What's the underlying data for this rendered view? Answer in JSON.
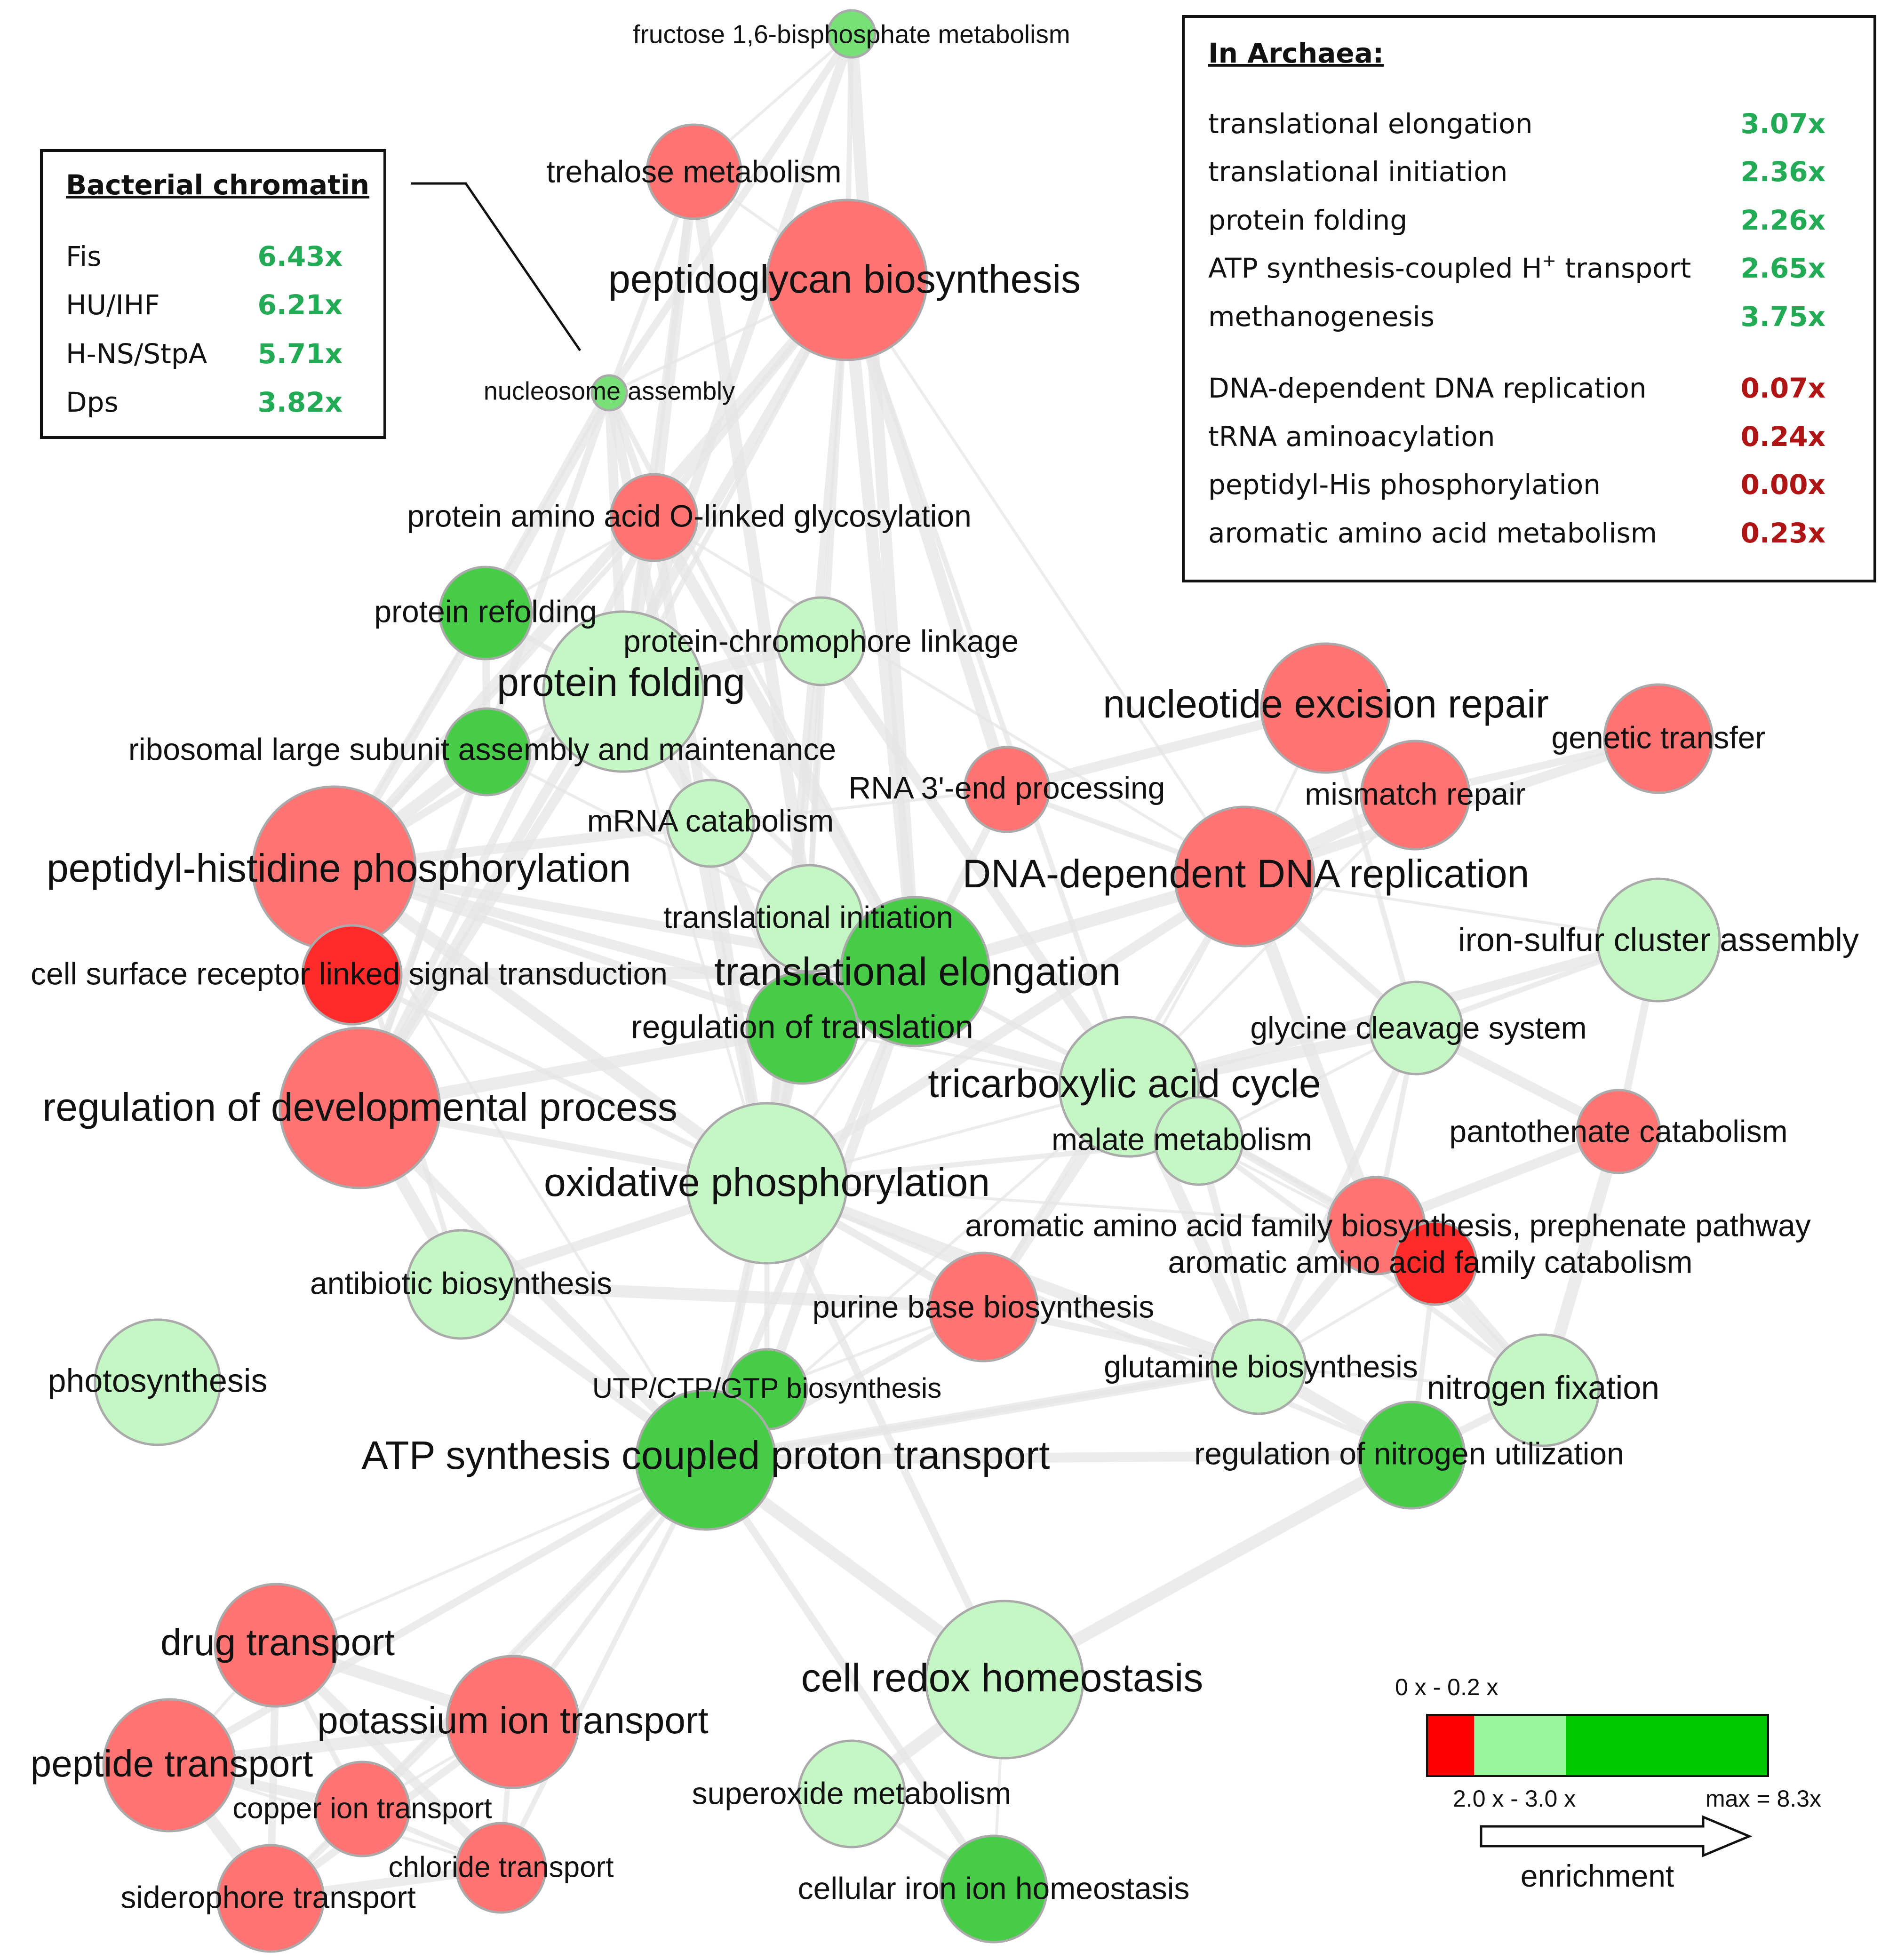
{
  "colors": {
    "red": "#ff7373",
    "red_dark": "#ff2a2a",
    "light_green": "#c4f7c4",
    "green": "#77e077",
    "green_dark": "#47cc47",
    "edge": "#e6e6e6",
    "enriched_text": "#22aa55",
    "depleted_text": "#b01515",
    "node_stroke": "#aaaaaa"
  },
  "nodes": [
    {
      "id": "fructose",
      "label": "fructose 1,6-bisphosphate metabolism",
      "color": "green"
    },
    {
      "id": "trehalose",
      "label": "trehalose metabolism",
      "color": "red"
    },
    {
      "id": "peptidoglycan",
      "label": "peptidoglycan biosynthesis",
      "color": "red"
    },
    {
      "id": "nucleosome",
      "label": "nucleosome assembly",
      "color": "green"
    },
    {
      "id": "olinked",
      "label": "protein amino acid O-linked glycosylation",
      "color": "red"
    },
    {
      "id": "refolding",
      "label": "protein refolding",
      "color": "green_dark"
    },
    {
      "id": "folding",
      "label": "protein folding",
      "color": "light_green"
    },
    {
      "id": "chromophore",
      "label": "protein-chromophore linkage",
      "color": "light_green"
    },
    {
      "id": "ribosomal",
      "label": "ribosomal large subunit assembly and maintenance",
      "color": "green_dark"
    },
    {
      "id": "mrna",
      "label": "mRNA catabolism",
      "color": "light_green"
    },
    {
      "id": "rna3",
      "label": "RNA 3'-end processing",
      "color": "red"
    },
    {
      "id": "ner",
      "label": "nucleotide excision repair",
      "color": "red"
    },
    {
      "id": "genetic",
      "label": "genetic transfer",
      "color": "red"
    },
    {
      "id": "mismatch",
      "label": "mismatch repair",
      "color": "red"
    },
    {
      "id": "peptidylhis",
      "label": "peptidyl-histidine phosphorylation",
      "color": "red"
    },
    {
      "id": "dnarep",
      "label": "DNA-dependent DNA replication",
      "color": "red"
    },
    {
      "id": "transinit",
      "label": "translational initiation",
      "color": "light_green"
    },
    {
      "id": "transelong",
      "label": "translational elongation",
      "color": "green_dark"
    },
    {
      "id": "cellsurface",
      "label": "cell surface receptor linked signal transduction",
      "color": "red_dark"
    },
    {
      "id": "regtrans",
      "label": "regulation of translation",
      "color": "green_dark"
    },
    {
      "id": "ironsulfur",
      "label": "iron-sulfur cluster assembly",
      "color": "light_green"
    },
    {
      "id": "glycine",
      "label": "glycine cleavage system",
      "color": "light_green"
    },
    {
      "id": "tca",
      "label": "tricarboxylic acid cycle",
      "color": "light_green"
    },
    {
      "id": "regdev",
      "label": "regulation of developmental process",
      "color": "red"
    },
    {
      "id": "malate",
      "label": "malate metabolism",
      "color": "light_green"
    },
    {
      "id": "pantothenate",
      "label": "pantothenate catabolism",
      "color": "red"
    },
    {
      "id": "oxphos",
      "label": "oxidative phosphorylation",
      "color": "light_green"
    },
    {
      "id": "aromaticbio",
      "label": "aromatic amino acid family biosynthesis, prephenate pathway",
      "color": "red"
    },
    {
      "id": "aromaticcat",
      "label": "aromatic amino acid family catabolism",
      "color": "red_dark"
    },
    {
      "id": "antibiotic",
      "label": "antibiotic biosynthesis",
      "color": "light_green"
    },
    {
      "id": "purine",
      "label": "purine base biosynthesis",
      "color": "red"
    },
    {
      "id": "photosynthesis",
      "label": "photosynthesis",
      "color": "light_green"
    },
    {
      "id": "utp",
      "label": "UTP/CTP/GTP biosynthesis",
      "color": "green_dark"
    },
    {
      "id": "glutamine",
      "label": "glutamine biosynthesis",
      "color": "light_green"
    },
    {
      "id": "nitrogenfix",
      "label": "nitrogen fixation",
      "color": "light_green"
    },
    {
      "id": "atpsynth",
      "label": "ATP synthesis coupled proton transport",
      "color": "green_dark"
    },
    {
      "id": "regnitrogen",
      "label": "regulation of nitrogen utilization",
      "color": "green_dark"
    },
    {
      "id": "drug",
      "label": "drug transport",
      "color": "red"
    },
    {
      "id": "cellredox",
      "label": "cell redox homeostasis",
      "color": "light_green"
    },
    {
      "id": "potassium",
      "label": "potassium ion transport",
      "color": "red"
    },
    {
      "id": "peptidetransport",
      "label": "peptide transport",
      "color": "red"
    },
    {
      "id": "superoxide",
      "label": "superoxide metabolism",
      "color": "light_green"
    },
    {
      "id": "copper",
      "label": "copper ion transport",
      "color": "red"
    },
    {
      "id": "chloride",
      "label": "chloride transport",
      "color": "red"
    },
    {
      "id": "siderophore",
      "label": "siderophore transport",
      "color": "red"
    },
    {
      "id": "ironhomeo",
      "label": "cellular iron ion homeostasis",
      "color": "green_dark"
    }
  ],
  "edges": [
    [
      "fructose",
      "trehalose"
    ],
    [
      "fructose",
      "peptidoglycan"
    ],
    [
      "fructose",
      "nucleosome"
    ],
    [
      "fructose",
      "folding"
    ],
    [
      "fructose",
      "transelong"
    ],
    [
      "trehalose",
      "peptidoglycan"
    ],
    [
      "trehalose",
      "nucleosome"
    ],
    [
      "trehalose",
      "folding"
    ],
    [
      "trehalose",
      "olinked"
    ],
    [
      "trehalose",
      "transinit"
    ],
    [
      "peptidoglycan",
      "nucleosome"
    ],
    [
      "peptidoglycan",
      "folding"
    ],
    [
      "peptidoglycan",
      "olinked"
    ],
    [
      "peptidoglycan",
      "peptidylhis"
    ],
    [
      "peptidoglycan",
      "transelong"
    ],
    [
      "peptidoglycan",
      "dnarep"
    ],
    [
      "peptidoglycan",
      "tca"
    ],
    [
      "peptidoglycan",
      "oxphos"
    ],
    [
      "peptidoglycan",
      "regdev"
    ],
    [
      "peptidoglycan",
      "rna3"
    ],
    [
      "peptidoglycan",
      "chromophore"
    ],
    [
      "peptidoglycan",
      "regtrans"
    ],
    [
      "nucleosome",
      "olinked"
    ],
    [
      "nucleosome",
      "folding"
    ],
    [
      "nucleosome",
      "refolding"
    ],
    [
      "nucleosome",
      "peptidylhis"
    ],
    [
      "nucleosome",
      "transelong"
    ],
    [
      "nucleosome",
      "regdev"
    ],
    [
      "nucleosome",
      "oxphos"
    ],
    [
      "olinked",
      "folding"
    ],
    [
      "olinked",
      "refolding"
    ],
    [
      "olinked",
      "peptidylhis"
    ],
    [
      "olinked",
      "regdev"
    ],
    [
      "olinked",
      "oxphos"
    ],
    [
      "olinked",
      "transelong"
    ],
    [
      "olinked",
      "dnarep"
    ],
    [
      "refolding",
      "folding"
    ],
    [
      "refolding",
      "ribosomal"
    ],
    [
      "refolding",
      "peptidylhis"
    ],
    [
      "folding",
      "chromophore"
    ],
    [
      "folding",
      "ribosomal"
    ],
    [
      "folding",
      "transelong"
    ],
    [
      "folding",
      "peptidylhis"
    ],
    [
      "folding",
      "regdev"
    ],
    [
      "folding",
      "mrna"
    ],
    [
      "folding",
      "oxphos"
    ],
    [
      "chromophore",
      "transinit"
    ],
    [
      "chromophore",
      "oxphos"
    ],
    [
      "chromophore",
      "tca"
    ],
    [
      "ribosomal",
      "peptidylhis"
    ],
    [
      "ribosomal",
      "transelong"
    ],
    [
      "ribosomal",
      "regdev"
    ],
    [
      "mrna",
      "transinit"
    ],
    [
      "mrna",
      "peptidylhis"
    ],
    [
      "mrna",
      "regtrans"
    ],
    [
      "mrna",
      "rna3"
    ],
    [
      "rna3",
      "dnarep"
    ],
    [
      "rna3",
      "transelong"
    ],
    [
      "rna3",
      "ner"
    ],
    [
      "ner",
      "mismatch"
    ],
    [
      "ner",
      "dnarep"
    ],
    [
      "ner",
      "glycine"
    ],
    [
      "genetic",
      "mismatch"
    ],
    [
      "genetic",
      "dnarep"
    ],
    [
      "mismatch",
      "dnarep"
    ],
    [
      "mismatch",
      "tca"
    ],
    [
      "peptidylhis",
      "cellsurface"
    ],
    [
      "peptidylhis",
      "regdev"
    ],
    [
      "peptidylhis",
      "transelong"
    ],
    [
      "peptidylhis",
      "oxphos"
    ],
    [
      "peptidylhis",
      "atpsynth"
    ],
    [
      "peptidylhis",
      "antibiotic"
    ],
    [
      "peptidylhis",
      "regtrans"
    ],
    [
      "peptidylhis",
      "tca"
    ],
    [
      "dnarep",
      "transelong"
    ],
    [
      "dnarep",
      "tca"
    ],
    [
      "dnarep",
      "purine"
    ],
    [
      "dnarep",
      "glycine"
    ],
    [
      "dnarep",
      "oxphos"
    ],
    [
      "dnarep",
      "aromaticbio"
    ],
    [
      "dnarep",
      "ironsulfur"
    ],
    [
      "transinit",
      "transelong"
    ],
    [
      "transinit",
      "regtrans"
    ],
    [
      "transinit",
      "oxphos"
    ],
    [
      "transelong",
      "regtrans"
    ],
    [
      "transelong",
      "oxphos"
    ],
    [
      "transelong",
      "tca"
    ],
    [
      "transelong",
      "atpsynth"
    ],
    [
      "transelong",
      "utp"
    ],
    [
      "transelong",
      "cellsurface"
    ],
    [
      "cellsurface",
      "regdev"
    ],
    [
      "cellsurface",
      "oxphos"
    ],
    [
      "regtrans",
      "oxphos"
    ],
    [
      "regtrans",
      "atpsynth"
    ],
    [
      "regtrans",
      "regdev"
    ],
    [
      "regtrans",
      "tca"
    ],
    [
      "ironsulfur",
      "glycine"
    ],
    [
      "ironsulfur",
      "pantothenate"
    ],
    [
      "ironsulfur",
      "tca"
    ],
    [
      "glycine",
      "tca"
    ],
    [
      "glycine",
      "malate"
    ],
    [
      "glycine",
      "aromaticbio"
    ],
    [
      "glycine",
      "glutamine"
    ],
    [
      "glycine",
      "pantothenate"
    ],
    [
      "tca",
      "malate"
    ],
    [
      "tca",
      "oxphos"
    ],
    [
      "tca",
      "aromaticbio"
    ],
    [
      "tca",
      "aromaticcat"
    ],
    [
      "tca",
      "purine"
    ],
    [
      "tca",
      "glutamine"
    ],
    [
      "tca",
      "atpsynth"
    ],
    [
      "tca",
      "nitrogenfix"
    ],
    [
      "regdev",
      "oxphos"
    ],
    [
      "regdev",
      "atpsynth"
    ],
    [
      "regdev",
      "antibiotic"
    ],
    [
      "malate",
      "aromaticcat"
    ],
    [
      "malate",
      "oxphos"
    ],
    [
      "malate",
      "glutamine"
    ],
    [
      "pantothenate",
      "aromaticbio"
    ],
    [
      "pantothenate",
      "nitrogenfix"
    ],
    [
      "oxphos",
      "atpsynth"
    ],
    [
      "oxphos",
      "utp"
    ],
    [
      "oxphos",
      "purine"
    ],
    [
      "oxphos",
      "antibiotic"
    ],
    [
      "oxphos",
      "glutamine"
    ],
    [
      "oxphos",
      "aromaticbio"
    ],
    [
      "oxphos",
      "regnitrogen"
    ],
    [
      "aromaticbio",
      "aromaticcat"
    ],
    [
      "aromaticbio",
      "glutamine"
    ],
    [
      "aromaticbio",
      "nitrogenfix"
    ],
    [
      "aromaticcat",
      "glutamine"
    ],
    [
      "aromaticcat",
      "regnitrogen"
    ],
    [
      "aromaticcat",
      "nitrogenfix"
    ],
    [
      "antibiotic",
      "atpsynth"
    ],
    [
      "antibiotic",
      "purine"
    ],
    [
      "purine",
      "utp"
    ],
    [
      "purine",
      "atpsynth"
    ],
    [
      "purine",
      "glutamine"
    ],
    [
      "utp",
      "atpsynth"
    ],
    [
      "glutamine",
      "regnitrogen"
    ],
    [
      "glutamine",
      "nitrogenfix"
    ],
    [
      "glutamine",
      "atpsynth"
    ],
    [
      "nitrogenfix",
      "regnitrogen"
    ],
    [
      "regnitrogen",
      "atpsynth"
    ],
    [
      "regnitrogen",
      "cellredox"
    ],
    [
      "atpsynth",
      "drug"
    ],
    [
      "atpsynth",
      "potassium"
    ],
    [
      "atpsynth",
      "peptidetransport"
    ],
    [
      "atpsynth",
      "copper"
    ],
    [
      "atpsynth",
      "cellredox"
    ],
    [
      "atpsynth",
      "siderophore"
    ],
    [
      "atpsynth",
      "chloride"
    ],
    [
      "atpsynth",
      "ironhomeo"
    ],
    [
      "atpsynth",
      "glutamine"
    ],
    [
      "drug",
      "potassium"
    ],
    [
      "drug",
      "peptidetransport"
    ],
    [
      "drug",
      "copper"
    ],
    [
      "drug",
      "siderophore"
    ],
    [
      "drug",
      "chloride"
    ],
    [
      "potassium",
      "peptidetransport"
    ],
    [
      "potassium",
      "copper"
    ],
    [
      "potassium",
      "chloride"
    ],
    [
      "potassium",
      "siderophore"
    ],
    [
      "peptidetransport",
      "copper"
    ],
    [
      "peptidetransport",
      "siderophore"
    ],
    [
      "peptidetransport",
      "chloride"
    ],
    [
      "copper",
      "chloride"
    ],
    [
      "copper",
      "siderophore"
    ],
    [
      "chloride",
      "siderophore"
    ],
    [
      "cellredox",
      "superoxide"
    ],
    [
      "cellredox",
      "ironhomeo"
    ],
    [
      "superoxide",
      "ironhomeo"
    ],
    [
      "cellredox",
      "oxphos"
    ]
  ],
  "bacterial_box": {
    "title": "Bacterial chromatin",
    "rows": [
      {
        "name": "Fis",
        "value": "6.43x"
      },
      {
        "name": "HU/IHF",
        "value": "6.21x"
      },
      {
        "name": "H-NS/StpA",
        "value": "5.71x"
      },
      {
        "name": "Dps",
        "value": "3.82x"
      }
    ]
  },
  "archaea_box": {
    "title": "In Archaea:",
    "enriched": [
      {
        "name": "translational elongation",
        "value": "3.07x"
      },
      {
        "name": "translational initiation",
        "value": "2.36x"
      },
      {
        "name": "protein folding",
        "value": "2.26x"
      },
      {
        "name": "ATP synthesis-coupled H",
        "sup": "+",
        "name_suffix": " transport",
        "value": "2.65x"
      },
      {
        "name": "methanogenesis",
        "value": "3.75x"
      }
    ],
    "depleted": [
      {
        "name": "DNA-dependent DNA replication",
        "value": "0.07x"
      },
      {
        "name": "tRNA aminoacylation",
        "value": "0.24x"
      },
      {
        "name": "peptidyl-His phosphorylation",
        "value": "0.00x"
      },
      {
        "name": "aromatic amino acid metabolism",
        "value": "0.23x"
      }
    ]
  },
  "legend": {
    "top_label": "0 x - 0.2 x",
    "mid_label": "2.0 x - 3.0 x",
    "max_label": "max = 8.3x",
    "arrow_label": "enrichment",
    "bar_colors": [
      "#ff0000",
      "#99f599",
      "#00c800"
    ]
  }
}
